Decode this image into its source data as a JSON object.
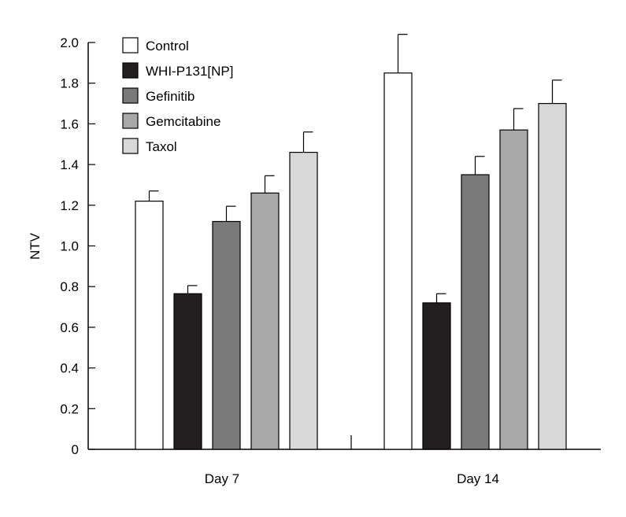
{
  "chart_data": {
    "type": "bar",
    "title": "",
    "xlabel": "",
    "ylabel": "NTV",
    "ylim": [
      0,
      2.0
    ],
    "yticks": [
      "0",
      "0.2",
      "0.4",
      "0.6",
      "0.8",
      "1.0",
      "1.2",
      "1.4",
      "1.6",
      "1.8",
      "2.0"
    ],
    "categories": [
      "Day 7",
      "Day 14"
    ],
    "legend_position": "top-left",
    "grid": false,
    "series": [
      {
        "name": "Control",
        "color": "#ffffff",
        "values": [
          1.22,
          1.85
        ],
        "errors": [
          0.05,
          0.19
        ]
      },
      {
        "name": "WHI-P131[NP]",
        "color": "#231f20",
        "values": [
          0.765,
          0.72
        ],
        "errors": [
          0.04,
          0.045
        ]
      },
      {
        "name": "Gefinitib",
        "color": "#7a7a7a",
        "values": [
          1.12,
          1.35
        ],
        "errors": [
          0.075,
          0.09
        ]
      },
      {
        "name": "Gemcitabine",
        "color": "#a8a8a8",
        "values": [
          1.26,
          1.57
        ],
        "errors": [
          0.085,
          0.105
        ]
      },
      {
        "name": "Taxol",
        "color": "#d8d8d8",
        "values": [
          1.46,
          1.7
        ],
        "errors": [
          0.1,
          0.115
        ]
      }
    ]
  }
}
